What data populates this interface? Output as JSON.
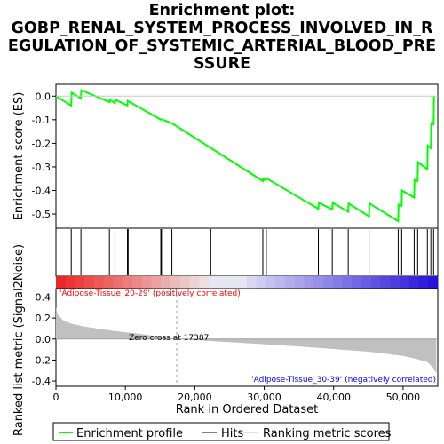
{
  "title": "Enrichment plot: GOBP_RENAL_SYSTEM_PROCESS_INVOLVED_IN_REGULATION_OF_SYSTEMIC_ARTERIAL_BLOOD_PRESSURE",
  "title_lines": [
    "Enrichment plot:",
    "GOBP_RENAL_SYSTEM_PROCESS_INVOLVED_IN_R",
    "EGULATION_OF_SYSTEMIC_ARTERIAL_BLOOD_PRE",
    "SSURE"
  ],
  "colors": {
    "enrichment_line": "#00ff00",
    "hits": "#000000",
    "metric_fill": "#c0c0c0",
    "positive_label": "#ff0000",
    "negative_label": "#0000ff",
    "zero_cross_line": "#a0a0a0"
  },
  "chart_data": [
    {
      "type": "line",
      "name": "enrichment-profile",
      "ylabel": "Enrichment score (ES)",
      "ylim": [
        -0.56,
        0.05
      ],
      "yticks": [
        0.0,
        -0.1,
        -0.2,
        -0.3,
        -0.4,
        -0.5
      ],
      "ytick_labels": [
        "0.0",
        "-0.1",
        "-0.2",
        "-0.3",
        "-0.4",
        "-0.5"
      ],
      "xlim": [
        0,
        55000
      ],
      "grid": false,
      "points": [
        [
          0,
          0.0
        ],
        [
          2200,
          -0.04
        ],
        [
          2250,
          0.015
        ],
        [
          3600,
          -0.01
        ],
        [
          3650,
          0.025
        ],
        [
          7700,
          -0.025
        ],
        [
          7750,
          -0.015
        ],
        [
          8500,
          -0.03
        ],
        [
          8550,
          -0.015
        ],
        [
          10300,
          -0.04
        ],
        [
          10350,
          -0.02
        ],
        [
          15100,
          -0.1
        ],
        [
          15200,
          -0.098
        ],
        [
          16700,
          -0.115
        ],
        [
          29800,
          -0.36
        ],
        [
          29850,
          -0.35
        ],
        [
          30200,
          -0.357
        ],
        [
          30300,
          -0.348
        ],
        [
          37800,
          -0.478
        ],
        [
          37850,
          -0.452
        ],
        [
          39800,
          -0.48
        ],
        [
          39850,
          -0.452
        ],
        [
          42100,
          -0.49
        ],
        [
          42150,
          -0.455
        ],
        [
          45100,
          -0.51
        ],
        [
          45150,
          -0.455
        ],
        [
          49300,
          -0.53
        ],
        [
          49350,
          -0.46
        ],
        [
          49800,
          -0.465
        ],
        [
          49850,
          -0.4
        ],
        [
          51600,
          -0.43
        ],
        [
          51650,
          -0.355
        ],
        [
          52100,
          -0.36
        ],
        [
          52150,
          -0.28
        ],
        [
          53500,
          -0.31
        ],
        [
          53550,
          -0.21
        ],
        [
          54000,
          -0.22
        ],
        [
          54050,
          -0.115
        ],
        [
          54400,
          -0.12
        ],
        [
          54450,
          0.0
        ]
      ]
    },
    {
      "type": "scatter",
      "name": "hits",
      "x": [
        2200,
        3600,
        7700,
        8500,
        10300,
        10400,
        15100,
        15200,
        16700,
        22300,
        29800,
        30300,
        37800,
        39800,
        42100,
        45100,
        49300,
        49800,
        51600,
        52100,
        53500,
        54000,
        54400
      ]
    },
    {
      "type": "area",
      "name": "ranked-list-metric",
      "ylabel": "Ranked list metric (Signal2Noise)",
      "xlabel": "Rank in Ordered Dataset",
      "ylim": [
        -0.45,
        0.48
      ],
      "yticks": [
        0.4,
        0.2,
        0.0,
        -0.2,
        -0.4
      ],
      "ytick_labels": [
        "0.4",
        "0.2",
        "0.0",
        "-0.2",
        "-0.4"
      ],
      "xlim": [
        0,
        55000
      ],
      "xticks": [
        0,
        10000,
        20000,
        30000,
        40000,
        50000
      ],
      "xtick_labels": [
        "0",
        "10,000",
        "20,000",
        "30,000",
        "40,000",
        "50,000"
      ],
      "points": [
        [
          0,
          0.3
        ],
        [
          300,
          0.23
        ],
        [
          1000,
          0.18
        ],
        [
          2000,
          0.15
        ],
        [
          4000,
          0.12
        ],
        [
          8000,
          0.08
        ],
        [
          12000,
          0.05
        ],
        [
          17387,
          0.0
        ],
        [
          25000,
          -0.03
        ],
        [
          35000,
          -0.07
        ],
        [
          45000,
          -0.12
        ],
        [
          50000,
          -0.16
        ],
        [
          52000,
          -0.19
        ],
        [
          53500,
          -0.22
        ],
        [
          54300,
          -0.27
        ],
        [
          54700,
          -0.32
        ],
        [
          54800,
          -0.32
        ]
      ],
      "zero_cross": 17387,
      "annotations": {
        "positive": "'Adipose-Tissue_20-29' (positively correlated)",
        "zero_cross": "Zero cross at 17387",
        "negative": "'Adipose-Tissue_30-39' (negatively correlated)"
      }
    }
  ],
  "legend": {
    "items": [
      "Enrichment profile",
      "Hits",
      "Ranking metric scores"
    ]
  }
}
